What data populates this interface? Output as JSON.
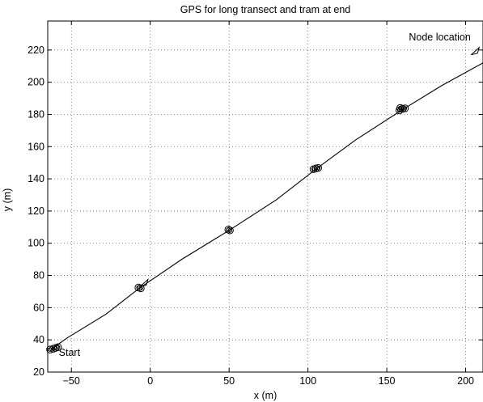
{
  "chart_data": {
    "type": "line",
    "title": "GPS for long transect and tram at end",
    "xlabel": "x (m)",
    "ylabel": "y (m)",
    "xlim": [
      -65,
      211
    ],
    "ylim": [
      20,
      238
    ],
    "xticks": [
      -50,
      0,
      50,
      100,
      150,
      200
    ],
    "yticks": [
      20,
      40,
      60,
      80,
      100,
      120,
      140,
      160,
      180,
      200,
      220
    ],
    "xtick_labels": [
      "−50",
      "0",
      "50",
      "100",
      "150",
      "200"
    ],
    "ytick_labels": [
      "20",
      "40",
      "60",
      "80",
      "100",
      "120",
      "140",
      "160",
      "180",
      "200",
      "220"
    ],
    "grid": true,
    "series": [
      {
        "x": [
          -63,
          -53,
          -28,
          -7,
          20,
          50,
          80,
          105,
          130,
          160,
          185,
          211
        ],
        "y": [
          34,
          41,
          56,
          72,
          90,
          108,
          127,
          146,
          164,
          183,
          198,
          212
        ]
      }
    ],
    "clusters": [
      {
        "x": -63.5,
        "y": 34.0
      },
      {
        "x": -61.5,
        "y": 34.5
      },
      {
        "x": -60.0,
        "y": 35.0
      },
      {
        "x": -58.5,
        "y": 35.5
      },
      {
        "x": -7.5,
        "y": 72.5
      },
      {
        "x": -6.0,
        "y": 72.0
      },
      {
        "x": 49.5,
        "y": 108.5
      },
      {
        "x": 50.5,
        "y": 108.0
      },
      {
        "x": 103.5,
        "y": 146.0
      },
      {
        "x": 105.0,
        "y": 146.5
      },
      {
        "x": 106.5,
        "y": 146.8
      },
      {
        "x": 158.0,
        "y": 182.5
      },
      {
        "x": 158.5,
        "y": 184.0
      },
      {
        "x": 160.0,
        "y": 183.5
      },
      {
        "x": 161.5,
        "y": 183.8
      }
    ],
    "annotations": [
      {
        "text": "Start",
        "x": -58,
        "y": 30
      },
      {
        "text": "Node location",
        "x": 164,
        "y": 226
      }
    ]
  }
}
